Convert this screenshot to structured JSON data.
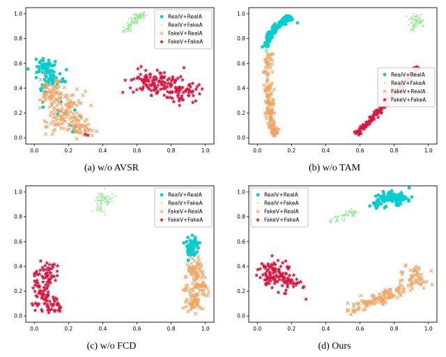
{
  "figure": {
    "background": "#ffffff"
  },
  "classes": [
    {
      "label": "RealV+RealA",
      "color": "#00CED1",
      "marker": "circle"
    },
    {
      "label": "RealV+FakeA",
      "color": "#90EE90",
      "marker": "dot"
    },
    {
      "label": "FakeV+RealA",
      "color": "#F4A460",
      "marker": "x"
    },
    {
      "label": "FakeV+FakeA",
      "color": "#DC143C",
      "marker": "star"
    }
  ],
  "axes": {
    "tick_labels": [
      "0.0",
      "0.2",
      "0.4",
      "0.6",
      "0.8",
      "1.0"
    ],
    "tick_values": [
      0,
      0.2,
      0.4,
      0.6,
      0.8,
      1.0
    ],
    "xlim": [
      -0.05,
      1.05
    ],
    "ylim": [
      -0.05,
      1.05
    ],
    "grid": false
  },
  "chart_data": [
    {
      "id": "a",
      "type": "scatter",
      "caption": "(a)  w/o AVSR",
      "legend_pos": "top-right",
      "series": [
        {
          "cls": 0,
          "clusters": [
            {
              "kind": "blob",
              "cx": 0.055,
              "cy": 0.575,
              "sx": 0.03,
              "sy": 0.03,
              "n": 45
            },
            {
              "kind": "blob",
              "cx": 0.1,
              "cy": 0.5,
              "sx": 0.035,
              "sy": 0.04,
              "n": 30
            },
            {
              "kind": "blob",
              "cx": 0.07,
              "cy": 0.44,
              "sx": 0.025,
              "sy": 0.03,
              "n": 14
            },
            {
              "kind": "blob",
              "cx": 0.17,
              "cy": 0.22,
              "sx": 0.06,
              "sy": 0.09,
              "n": 9
            },
            {
              "kind": "blob",
              "cx": 0.24,
              "cy": 0.05,
              "sx": 0.03,
              "sy": 0.03,
              "n": 4
            }
          ]
        },
        {
          "cls": 1,
          "clusters": [
            {
              "kind": "curve",
              "x1": 0.53,
              "y1": 0.85,
              "cx": 0.56,
              "cy": 0.92,
              "x2": 0.63,
              "y2": 1.0,
              "w": 0.012,
              "n": 70
            },
            {
              "kind": "blob",
              "cx": 0.615,
              "cy": 0.985,
              "sx": 0.018,
              "sy": 0.012,
              "n": 30
            }
          ]
        },
        {
          "cls": 2,
          "clusters": [
            {
              "kind": "blob",
              "cx": 0.09,
              "cy": 0.4,
              "sx": 0.035,
              "sy": 0.05,
              "n": 40
            },
            {
              "kind": "blob",
              "cx": 0.15,
              "cy": 0.3,
              "sx": 0.05,
              "sy": 0.05,
              "n": 55
            },
            {
              "kind": "blob",
              "cx": 0.21,
              "cy": 0.18,
              "sx": 0.05,
              "sy": 0.06,
              "n": 60
            },
            {
              "kind": "blob",
              "cx": 0.27,
              "cy": 0.07,
              "sx": 0.04,
              "sy": 0.035,
              "n": 40
            },
            {
              "kind": "blob",
              "cx": 0.13,
              "cy": 0.12,
              "sx": 0.03,
              "sy": 0.035,
              "n": 20
            }
          ]
        },
        {
          "cls": 3,
          "clusters": [
            {
              "kind": "blob",
              "cx": 0.66,
              "cy": 0.46,
              "sx": 0.055,
              "sy": 0.05,
              "n": 55
            },
            {
              "kind": "blob",
              "cx": 0.78,
              "cy": 0.42,
              "sx": 0.07,
              "sy": 0.05,
              "n": 70
            },
            {
              "kind": "blob",
              "cx": 0.88,
              "cy": 0.37,
              "sx": 0.05,
              "sy": 0.04,
              "n": 45
            },
            {
              "kind": "blob",
              "cx": 0.3,
              "cy": 0.03,
              "sx": 0.006,
              "sy": 0.006,
              "n": 2
            }
          ]
        }
      ]
    },
    {
      "id": "b",
      "type": "scatter",
      "caption": "(b)  w/o TAM",
      "legend_pos": "right-center",
      "series": [
        {
          "cls": 0,
          "clusters": [
            {
              "kind": "curve",
              "x1": 0.05,
              "y1": 0.73,
              "cx": 0.06,
              "cy": 0.88,
              "x2": 0.2,
              "y2": 0.97,
              "w": 0.012,
              "n": 100
            },
            {
              "kind": "blob",
              "cx": 0.175,
              "cy": 0.95,
              "sx": 0.02,
              "sy": 0.015,
              "n": 25
            }
          ]
        },
        {
          "cls": 1,
          "clusters": [
            {
              "kind": "blob",
              "cx": 0.93,
              "cy": 0.95,
              "sx": 0.02,
              "sy": 0.025,
              "n": 50
            },
            {
              "kind": "curve",
              "x1": 0.905,
              "y1": 0.86,
              "cx": 0.91,
              "cy": 0.9,
              "x2": 0.925,
              "y2": 0.95,
              "w": 0.008,
              "n": 20
            },
            {
              "kind": "line",
              "x1": 0.055,
              "y1": 0.67,
              "x2": 0.05,
              "y2": 0.73,
              "w": 0.006,
              "n": 12
            }
          ]
        },
        {
          "cls": 2,
          "clusters": [
            {
              "kind": "curve",
              "x1": 0.1,
              "y1": 0.03,
              "cx": 0.05,
              "cy": 0.3,
              "x2": 0.065,
              "y2": 0.68,
              "w": 0.012,
              "n": 150
            },
            {
              "kind": "blob",
              "cx": 0.1,
              "cy": 0.05,
              "sx": 0.012,
              "sy": 0.02,
              "n": 15
            }
          ]
        },
        {
          "cls": 3,
          "clusters": [
            {
              "kind": "curve",
              "x1": 0.58,
              "y1": 0.03,
              "cx": 0.75,
              "cy": 0.27,
              "x2": 0.94,
              "y2": 0.57,
              "w": 0.01,
              "n": 150
            },
            {
              "kind": "blob",
              "cx": 0.93,
              "cy": 0.555,
              "sx": 0.012,
              "sy": 0.012,
              "n": 15
            }
          ]
        }
      ]
    },
    {
      "id": "c",
      "type": "scatter",
      "caption": "(c)  w/o FCD",
      "legend_pos": "top-right",
      "series": [
        {
          "cls": 0,
          "clusters": [
            {
              "kind": "blob",
              "cx": 0.92,
              "cy": 0.57,
              "sx": 0.02,
              "sy": 0.028,
              "n": 50
            },
            {
              "kind": "blob",
              "cx": 0.905,
              "cy": 0.5,
              "sx": 0.013,
              "sy": 0.02,
              "n": 18
            }
          ]
        },
        {
          "cls": 1,
          "clusters": [
            {
              "kind": "blob",
              "cx": 0.405,
              "cy": 0.94,
              "sx": 0.028,
              "sy": 0.032,
              "n": 55
            },
            {
              "kind": "blob",
              "cx": 0.375,
              "cy": 0.87,
              "sx": 0.014,
              "sy": 0.018,
              "n": 15
            }
          ]
        },
        {
          "cls": 2,
          "clusters": [
            {
              "kind": "blob",
              "cx": 0.94,
              "cy": 0.38,
              "sx": 0.023,
              "sy": 0.045,
              "n": 50
            },
            {
              "kind": "blob",
              "cx": 0.955,
              "cy": 0.24,
              "sx": 0.028,
              "sy": 0.05,
              "n": 55
            },
            {
              "kind": "blob",
              "cx": 0.93,
              "cy": 0.1,
              "sx": 0.024,
              "sy": 0.04,
              "n": 45
            }
          ]
        },
        {
          "cls": 3,
          "clusters": [
            {
              "kind": "blob",
              "cx": 0.07,
              "cy": 0.33,
              "sx": 0.038,
              "sy": 0.048,
              "n": 50
            },
            {
              "kind": "blob",
              "cx": 0.05,
              "cy": 0.2,
              "sx": 0.03,
              "sy": 0.04,
              "n": 40
            },
            {
              "kind": "blob",
              "cx": 0.09,
              "cy": 0.08,
              "sx": 0.042,
              "sy": 0.038,
              "n": 45
            }
          ]
        }
      ]
    },
    {
      "id": "d",
      "type": "scatter",
      "caption": "(d)  Ours",
      "legend_pos": "top-left",
      "series": [
        {
          "cls": 0,
          "clusters": [
            {
              "kind": "blob",
              "cx": 0.79,
              "cy": 0.95,
              "sx": 0.05,
              "sy": 0.026,
              "n": 105
            },
            {
              "kind": "blob",
              "cx": 0.7,
              "cy": 0.905,
              "sx": 0.018,
              "sy": 0.018,
              "n": 15
            }
          ]
        },
        {
          "cls": 1,
          "clusters": [
            {
              "kind": "line",
              "x1": 0.42,
              "y1": 0.765,
              "x2": 0.58,
              "y2": 0.85,
              "w": 0.016,
              "n": 60
            }
          ]
        },
        {
          "cls": 2,
          "clusters": [
            {
              "kind": "line",
              "x1": 0.53,
              "y1": 0.03,
              "x2": 0.86,
              "y2": 0.23,
              "w": 0.025,
              "n": 85
            },
            {
              "kind": "blob",
              "cx": 0.92,
              "cy": 0.295,
              "sx": 0.045,
              "sy": 0.055,
              "n": 55
            },
            {
              "kind": "blob",
              "cx": 0.74,
              "cy": 0.15,
              "sx": 0.04,
              "sy": 0.035,
              "n": 25
            }
          ]
        },
        {
          "cls": 3,
          "clusters": [
            {
              "kind": "blob",
              "cx": 0.1,
              "cy": 0.385,
              "sx": 0.04,
              "sy": 0.04,
              "n": 50
            },
            {
              "kind": "blob",
              "cx": 0.155,
              "cy": 0.28,
              "sx": 0.05,
              "sy": 0.045,
              "n": 55
            },
            {
              "kind": "blob",
              "cx": 0.065,
              "cy": 0.3,
              "sx": 0.025,
              "sy": 0.035,
              "n": 20
            }
          ]
        }
      ]
    }
  ]
}
